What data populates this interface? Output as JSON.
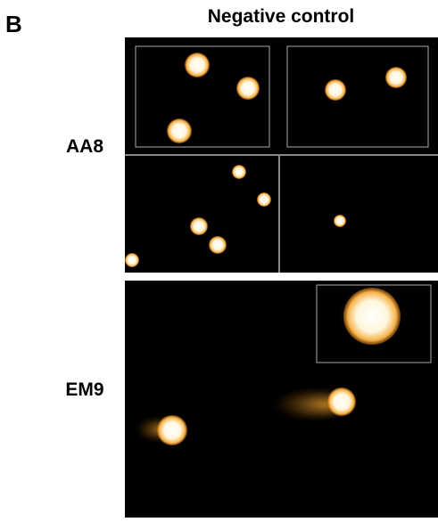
{
  "panel_label": "B",
  "title": "Negative control",
  "rows": [
    {
      "label": "AA8"
    },
    {
      "label": "EM9"
    }
  ]
}
